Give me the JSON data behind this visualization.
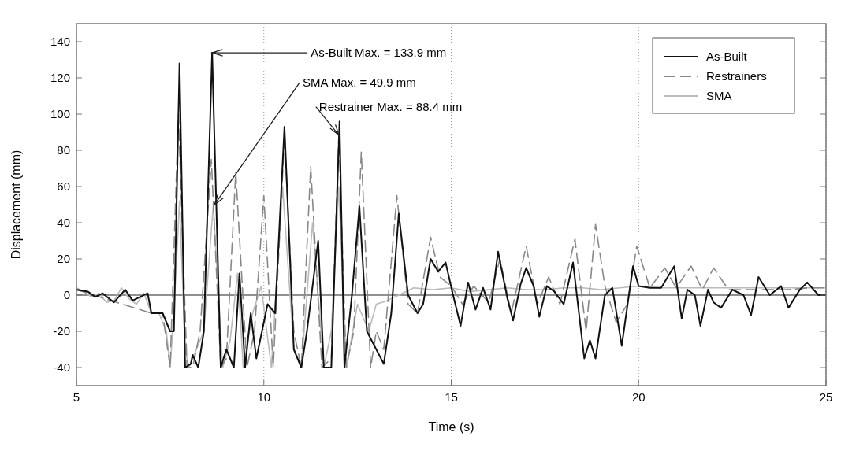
{
  "chart_data": {
    "type": "line",
    "xlabel": "Time (s)",
    "ylabel": "Displacement (mm)",
    "xlim": [
      5,
      25
    ],
    "ylim": [
      -50,
      150
    ],
    "xticks": [
      5,
      10,
      15,
      20,
      25
    ],
    "yticks": [
      -40,
      -20,
      0,
      20,
      40,
      60,
      80,
      100,
      120,
      140
    ],
    "grid": "x",
    "legend": "top right",
    "ref_lines": [
      {
        "axis": "y",
        "value": 0,
        "color": "#222222"
      }
    ],
    "annotations": [
      {
        "text": "As-Built Max. = 133.9 mm",
        "x": 8.62,
        "y": 133.9
      },
      {
        "text": "SMA Max. = 49.9 mm",
        "x": 8.68,
        "y": 49.9
      },
      {
        "text": "Restrainer Max. = 88.4 mm",
        "x": 12.0,
        "y": 88.4
      }
    ],
    "series": [
      {
        "name": "SMA",
        "color": "#bbbbbb",
        "line_style": "solid",
        "x": [
          5,
          5.2,
          5.4,
          5.6,
          5.8,
          6.0,
          6.2,
          6.4,
          6.6,
          6.8,
          7.0,
          7.2,
          7.4,
          7.5,
          7.6,
          7.75,
          7.9,
          8.0,
          8.2,
          8.4,
          8.65,
          8.9,
          9.1,
          9.3,
          9.45,
          9.7,
          9.93,
          10.2,
          10.5,
          10.8,
          11.0,
          11.3,
          11.6,
          11.8,
          12.0,
          12.2,
          12.5,
          12.8,
          13.0,
          13.3,
          13.6,
          14.0,
          14.5,
          15.0,
          15.5,
          16.0,
          16.5,
          17.0,
          17.5,
          18.0,
          18.5,
          19.0,
          19.5,
          20.0,
          20.5,
          21.0,
          21.5,
          22.0,
          22.5,
          23.0,
          23.5,
          24.0,
          24.5,
          25.0
        ],
        "values": [
          4,
          2,
          -1,
          1,
          -4,
          -3,
          4,
          -2,
          -5,
          1,
          -10,
          -10,
          -20,
          -40,
          -10,
          52,
          -30,
          -40,
          -30,
          -20,
          49.9,
          -40,
          -25,
          12,
          -40,
          -10,
          5,
          -40,
          60,
          -30,
          -40,
          40,
          -40,
          -20,
          60,
          -40,
          -5,
          -20,
          -5,
          -3,
          0,
          4,
          3,
          4,
          2,
          3,
          4,
          3,
          3,
          4,
          4,
          3,
          4,
          5,
          4,
          4,
          4,
          4,
          4,
          4,
          4,
          4,
          4,
          4
        ]
      },
      {
        "name": "Restrainers",
        "color": "#888888",
        "line_style": "dashed",
        "x": [
          5,
          7.0,
          7.3,
          7.5,
          7.72,
          7.95,
          8.1,
          8.3,
          8.6,
          8.85,
          9.0,
          9.25,
          9.55,
          9.75,
          10.0,
          10.25,
          10.55,
          10.8,
          11.0,
          11.25,
          11.55,
          11.8,
          12.0,
          12.2,
          12.4,
          12.6,
          12.85,
          13.0,
          13.2,
          13.55,
          13.85,
          14.1,
          14.45,
          14.7,
          15.0,
          15.3,
          15.6,
          16.0,
          16.3,
          16.6,
          17.0,
          17.3,
          17.6,
          17.9,
          18.3,
          18.6,
          18.85,
          19.1,
          19.4,
          19.7,
          19.95,
          20.3,
          20.7,
          21.0,
          21.4,
          21.7,
          22.0,
          22.4,
          23.0,
          23.5,
          24.0,
          24.5,
          25.0
        ],
        "values": [
          3,
          -10,
          -10,
          -40,
          100,
          -40,
          -40,
          -20,
          75,
          -40,
          -35,
          68,
          -40,
          -20,
          55,
          -40,
          88,
          -20,
          -40,
          71,
          -40,
          -35,
          88.4,
          -40,
          -20,
          79,
          -40,
          -20,
          -30,
          55,
          -5,
          -10,
          32,
          10,
          5,
          -5,
          5,
          -4,
          20,
          -10,
          27,
          -5,
          10,
          -5,
          31,
          -20,
          39,
          5,
          -15,
          -5,
          27,
          4,
          15,
          4,
          16,
          3,
          15,
          3,
          3,
          3,
          3,
          4,
          4
        ]
      },
      {
        "name": "As-Built",
        "color": "#111111",
        "line_style": "solid",
        "x": [
          5,
          5.3,
          5.5,
          5.7,
          6.0,
          6.3,
          6.5,
          6.9,
          7.0,
          7.3,
          7.5,
          7.6,
          7.75,
          7.9,
          8.05,
          8.1,
          8.25,
          8.4,
          8.62,
          8.85,
          9.0,
          9.2,
          9.35,
          9.5,
          9.65,
          9.8,
          10.1,
          10.3,
          10.55,
          10.8,
          11.0,
          11.15,
          11.45,
          11.6,
          11.8,
          12.02,
          12.15,
          12.35,
          12.55,
          12.75,
          13.0,
          13.2,
          13.4,
          13.6,
          13.85,
          14.1,
          14.25,
          14.45,
          14.65,
          14.85,
          15.05,
          15.25,
          15.45,
          15.65,
          15.85,
          16.05,
          16.25,
          16.5,
          16.65,
          16.85,
          17.0,
          17.2,
          17.35,
          17.55,
          17.75,
          18.0,
          18.25,
          18.55,
          18.7,
          18.85,
          19.1,
          19.3,
          19.55,
          19.85,
          20.0,
          20.3,
          20.6,
          20.95,
          21.15,
          21.3,
          21.5,
          21.65,
          21.85,
          22.0,
          22.2,
          22.5,
          22.8,
          23.0,
          23.2,
          23.5,
          23.8,
          24.0,
          24.3,
          24.5,
          24.8,
          25.0
        ],
        "values": [
          3,
          2,
          -1,
          1,
          -4,
          3,
          -3,
          1,
          -10,
          -10,
          -20,
          -20,
          128,
          -40,
          -38,
          -33,
          -40,
          -20,
          133.9,
          -40,
          -30,
          -40,
          12,
          -40,
          -10,
          -35,
          -5,
          -10,
          93,
          -30,
          -40,
          -20,
          30,
          -40,
          -40,
          96,
          -40,
          0,
          49,
          -20,
          -30,
          -38,
          -10,
          45,
          0,
          -10,
          -5,
          20,
          13,
          18,
          0,
          -17,
          7,
          -8,
          4,
          -8,
          24,
          -2,
          -14,
          6,
          15,
          5,
          -12,
          5,
          2,
          -5,
          18,
          -35,
          -25,
          -35,
          0,
          4,
          -28,
          16,
          5,
          4,
          4,
          16,
          -13,
          3,
          0,
          -17,
          3,
          -4,
          -7,
          3,
          0,
          -11,
          10,
          0,
          5,
          -7,
          3,
          7,
          0,
          0
        ]
      }
    ]
  }
}
